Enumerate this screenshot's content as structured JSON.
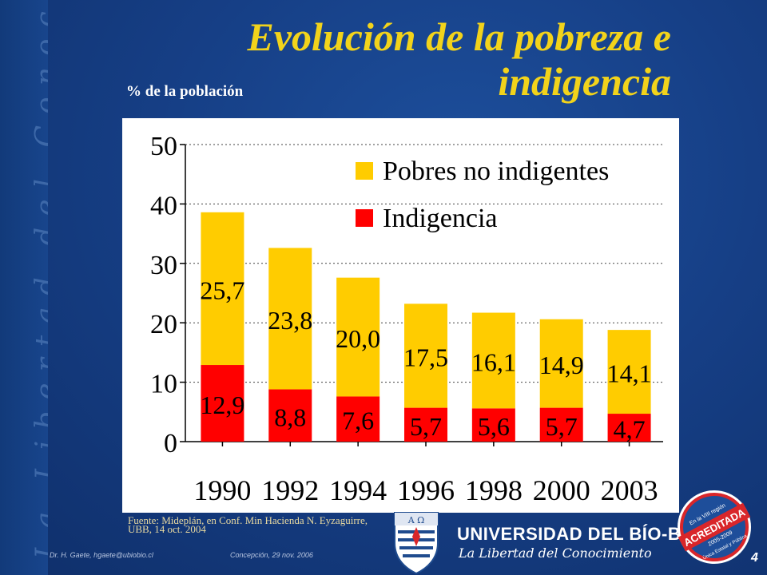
{
  "slide": {
    "title": "Evolución de la pobreza e indigencia",
    "subtitle": "% de la población",
    "vertical_motto": "La Libertad del Conocimiento",
    "source_note": "Fuente: Mideplán, en Conf. Min Hacienda N. Eyzaguirre, UBB, 14 oct. 2004",
    "footer_author": "Dr. H. Gaete,    hgaete@ubiobio.cl",
    "footer_place_date": "Concepción, 29 nov. 2006",
    "page_number": "4"
  },
  "branding": {
    "university_name": "UNIVERSIDAD DEL BÍO-BÍO",
    "motto": "La Libertad del Conocimiento",
    "badge_top": "En la VIII región",
    "badge_band": "ACREDITADA",
    "badge_years": "2005-2009",
    "badge_bottom": "Única Estatal y Pública"
  },
  "colors": {
    "background": "#163f86",
    "title": "#f2d31b",
    "pobres_no_indigentes": "#ffcc00",
    "indigencia": "#ff0000"
  },
  "chart_data": {
    "type": "bar",
    "stacked": true,
    "categories": [
      "1990",
      "1992",
      "1994",
      "1996",
      "1998",
      "2000",
      "2003"
    ],
    "series": [
      {
        "name": "Indigencia",
        "values": [
          12.9,
          8.8,
          7.6,
          5.7,
          5.6,
          5.7,
          4.7
        ],
        "labels": [
          "12,9",
          "8,8",
          "7,6",
          "5,7",
          "5,6",
          "5,7",
          "4,7"
        ],
        "color": "#ff0000"
      },
      {
        "name": "Pobres no indigentes",
        "values": [
          25.7,
          23.8,
          20.0,
          17.5,
          16.1,
          14.9,
          14.1
        ],
        "labels": [
          "25,7",
          "23,8",
          "20,0",
          "17,5",
          "16,1",
          "14,9",
          "14,1"
        ],
        "color": "#ffcc00"
      }
    ],
    "legend_order": [
      "Pobres no indigentes",
      "Indigencia"
    ],
    "legend_position": "top-right",
    "ylim": [
      0,
      50
    ],
    "yticks": [
      "0",
      "10",
      "20",
      "30",
      "40",
      "50"
    ],
    "grid": true
  }
}
